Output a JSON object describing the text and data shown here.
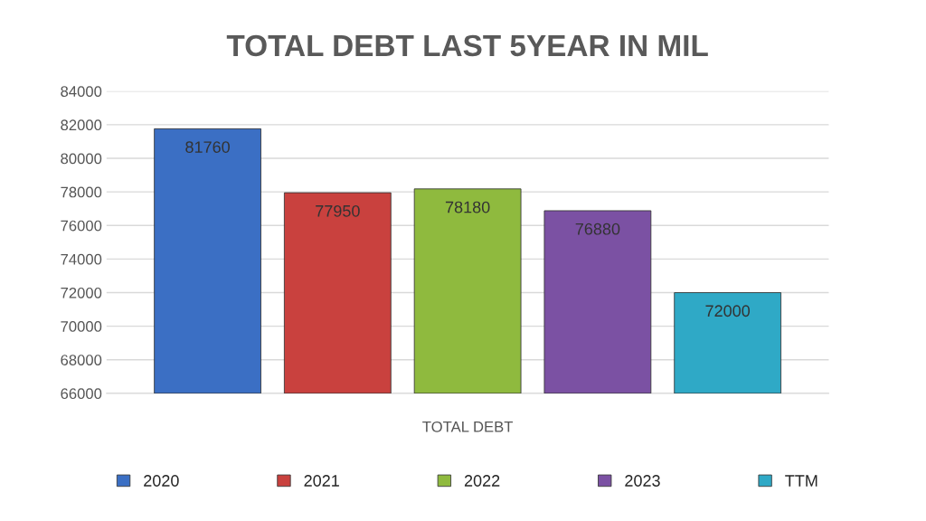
{
  "chart_data": {
    "type": "bar",
    "title": "TOTAL DEBT LAST 5YEAR IN MIL",
    "categories": [
      "TOTAL DEBT"
    ],
    "series": [
      {
        "name": "2020",
        "color": "#3b6fc4",
        "values": [
          81760
        ]
      },
      {
        "name": "2021",
        "color": "#c9413e",
        "values": [
          77950
        ]
      },
      {
        "name": "2022",
        "color": "#8fba3e",
        "values": [
          78180
        ]
      },
      {
        "name": "2023",
        "color": "#7b51a3",
        "values": [
          76880
        ]
      },
      {
        "name": "TTM",
        "color": "#2fa9c6",
        "values": [
          72000
        ]
      }
    ],
    "ylim": [
      66000,
      84000
    ],
    "yticks": [
      66000,
      68000,
      70000,
      72000,
      74000,
      76000,
      78000,
      80000,
      82000,
      84000
    ],
    "grid": "y",
    "legend": "bottom",
    "data_labels": true
  }
}
